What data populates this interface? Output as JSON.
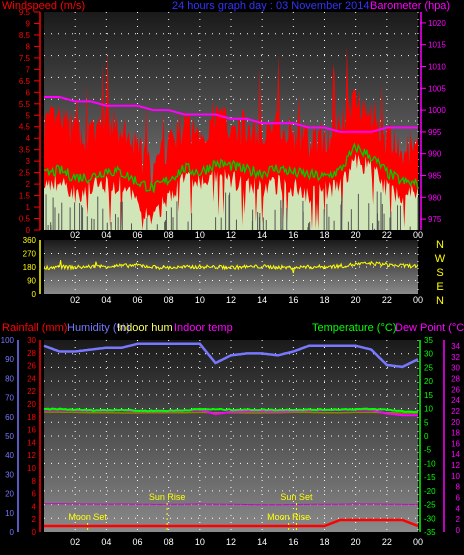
{
  "colors": {
    "background": "#000000",
    "grid_dot": "#ffffff",
    "wind_speed": "#ff0000",
    "wind_gust_bg": "#ccffcc",
    "wind_avg": "#00cc00",
    "barometer": "#ff00ff",
    "wind_dir": "#ffff00",
    "humidity": "#7777ff",
    "indoor_hum": "#ffff66",
    "indoor_temp": "#ff00ff",
    "temperature": "#00ff00",
    "dew_point": "#ff00ff",
    "rainfall": "#ff0000",
    "astro_text": "#ffff00",
    "title": "#3333ff",
    "left_axis": "#ff0000",
    "right_axis_baro": "#ff00ff",
    "humidity_axis": "#7777ff",
    "temp_axis": "#00ff00",
    "dew_axis": "#ff00ff"
  },
  "chart_data": [
    {
      "type": "area",
      "title": "24 hours graph day : 03 November 2014",
      "left_label": "Windspeed (m/s)",
      "right_label": "Barometer (hpa)",
      "x_tick_labels": [
        "02",
        "04",
        "06",
        "08",
        "10",
        "12",
        "14",
        "16",
        "18",
        "20",
        "22",
        "00"
      ],
      "left_ticks": [
        "9.5",
        "9",
        "8.5",
        "8",
        "7.5",
        "7",
        "6.5",
        "6",
        "5.5",
        "5",
        "4.5",
        "4",
        "3.5",
        "3",
        "2.5",
        "2",
        "1.5",
        "1",
        "0.5",
        "0"
      ],
      "right_ticks": [
        "1020",
        "1015",
        "1010",
        "1005",
        "1000",
        "995",
        "990",
        "985",
        "980",
        "975"
      ],
      "wind_ylim": [
        0,
        9.5
      ],
      "baro_ylim": [
        972.5,
        1022.5
      ],
      "x": [
        0,
        1,
        2,
        3,
        4,
        5,
        6,
        7,
        8,
        9,
        10,
        11,
        12,
        13,
        14,
        15,
        16,
        17,
        18,
        19,
        20,
        21,
        22,
        23,
        24
      ],
      "series": [
        {
          "values": [
            4.6,
            4.8,
            4.3,
            4.1,
            4.9,
            4.2,
            3.6,
            2.4,
            3.8,
            4.6,
            4.1,
            5.0,
            4.7,
            4.4,
            4.3,
            4.8,
            4.2,
            3.9,
            4.1,
            4.6,
            5.9,
            5.2,
            3.9,
            3.4,
            3.6
          ]
        },
        {
          "values": [
            2.4,
            2.6,
            2.3,
            2.3,
            2.6,
            2.5,
            2.1,
            1.8,
            2.2,
            2.7,
            2.5,
            2.9,
            2.8,
            2.6,
            2.5,
            2.7,
            2.5,
            2.4,
            2.3,
            2.6,
            3.6,
            3.2,
            2.5,
            2.1,
            2.0
          ]
        },
        {
          "values": [
            2.0,
            2.1,
            1.6,
            1.8,
            2.0,
            1.9,
            1.1,
            0.4,
            1.5,
            2.3,
            2.0,
            2.3,
            2.2,
            1.9,
            1.8,
            2.0,
            1.9,
            1.6,
            1.7,
            1.9,
            3.0,
            2.7,
            1.8,
            1.5,
            1.8
          ]
        },
        {
          "values": [
            1003,
            1003,
            1002,
            1002,
            1001,
            1001,
            1001,
            1000,
            1000,
            999,
            999,
            999,
            998,
            998,
            997,
            997,
            997,
            996,
            996,
            995,
            995,
            995,
            996,
            996,
            996
          ]
        }
      ]
    },
    {
      "type": "scatter",
      "right_letters": [
        "N",
        "W",
        "S",
        "E",
        "N"
      ],
      "ticks": [
        "360",
        "270",
        "180",
        "90",
        "0"
      ],
      "ylim": [
        0,
        360
      ],
      "x": [
        0,
        1,
        2,
        3,
        4,
        5,
        6,
        7,
        8,
        9,
        10,
        11,
        12,
        13,
        14,
        15,
        16,
        17,
        18,
        19,
        20,
        21,
        22,
        23,
        24
      ],
      "series": [
        {
          "values": [
            175,
            180,
            178,
            182,
            185,
            188,
            192,
            180,
            176,
            178,
            182,
            180,
            177,
            181,
            183,
            178,
            176,
            180,
            182,
            186,
            198,
            204,
            196,
            188,
            186
          ]
        }
      ]
    },
    {
      "type": "line",
      "left_labels": [
        "Rainfall (mm)",
        "Humidity (%)",
        "Indoor hum",
        "Indoor temp"
      ],
      "right_labels": [
        "Temperature (°C)",
        "Dew Point (°C)"
      ],
      "humidity_ticks": [
        "100",
        "90",
        "80",
        "70",
        "60",
        "50",
        "40",
        "30",
        "20",
        "10",
        "0"
      ],
      "rain_ticks": [
        "30",
        "28",
        "26",
        "24",
        "22",
        "20",
        "18",
        "16",
        "14",
        "12",
        "10",
        "8",
        "6",
        "4",
        "2",
        "0"
      ],
      "temp_ticks": [
        "35",
        "30",
        "25",
        "20",
        "15",
        "10",
        "5",
        "0",
        "-5",
        "-10",
        "-15",
        "-20",
        "-25",
        "-30",
        "-35"
      ],
      "dew_ticks": [
        "34",
        "32",
        "30",
        "28",
        "26",
        "24",
        "22",
        "20",
        "18",
        "16",
        "14",
        "12",
        "10",
        "8",
        "6",
        "4",
        "2",
        "0"
      ],
      "humidity_ylim": [
        0,
        100
      ],
      "temp_ylim": [
        -35,
        35
      ],
      "x": [
        0,
        1,
        2,
        3,
        4,
        5,
        6,
        7,
        8,
        9,
        10,
        11,
        12,
        13,
        14,
        15,
        16,
        17,
        18,
        19,
        20,
        21,
        22,
        23,
        24
      ],
      "series": [
        {
          "values": [
            97,
            94,
            94,
            95,
            96,
            96,
            98,
            98,
            98,
            98,
            98,
            88,
            92,
            93,
            93,
            92,
            94,
            97,
            97,
            97,
            97,
            95,
            87,
            86,
            90
          ]
        },
        {
          "values": [
            8.7,
            8.7,
            8.6,
            8.5,
            8.5,
            8.4,
            8.4,
            8.5,
            8.5,
            8.5,
            8.6,
            8.5,
            8.5,
            8.4,
            8.4,
            8.5,
            8.6,
            8.6,
            8.5,
            8.5,
            8.6,
            8.6,
            8.5,
            8.4,
            8.4
          ]
        },
        {
          "values": [
            9.8,
            9.8,
            9.6,
            9.4,
            9.4,
            9.6,
            9.2,
            9.2,
            9.2,
            9.4,
            9.8,
            9.7,
            9.6,
            9.6,
            9.6,
            9.5,
            9.6,
            9.6,
            9.6,
            9.7,
            9.8,
            9.8,
            9.6,
            9.0,
            8.8
          ]
        },
        {
          "values": [
            9.6,
            9.6,
            9.4,
            9.2,
            9.2,
            9.4,
            9.0,
            9.0,
            9.0,
            9.2,
            9.6,
            8.0,
            8.8,
            9.0,
            9.0,
            8.9,
            9.0,
            9.4,
            9.4,
            9.5,
            9.6,
            9.5,
            8.2,
            7.6,
            7.6
          ]
        },
        {
          "values": [
            14.7,
            14.7,
            14.6,
            14.6,
            14.5,
            14.6,
            14.5,
            14.4,
            14.4,
            14.5,
            14.6,
            14.5,
            14.5,
            14.3,
            14.2,
            14.2,
            14.3,
            14.4,
            14.5,
            14.5,
            14.6,
            14.6,
            14.5,
            14.4,
            14.4
          ]
        },
        {
          "values": [
            0,
            0,
            0,
            0,
            0,
            0,
            0,
            0,
            0,
            0,
            0,
            0,
            0,
            0,
            0,
            0,
            0,
            0,
            0,
            1,
            1,
            1,
            1,
            1,
            0
          ]
        }
      ],
      "astro": [
        {
          "label": "Moon Set",
          "hour": 2.8
        },
        {
          "label": "Sun Rise",
          "hour": 7.9
        },
        {
          "label": "Sun Set",
          "hour": 16.2
        },
        {
          "label": "Moon Rise",
          "hour": 15.7
        }
      ]
    }
  ]
}
